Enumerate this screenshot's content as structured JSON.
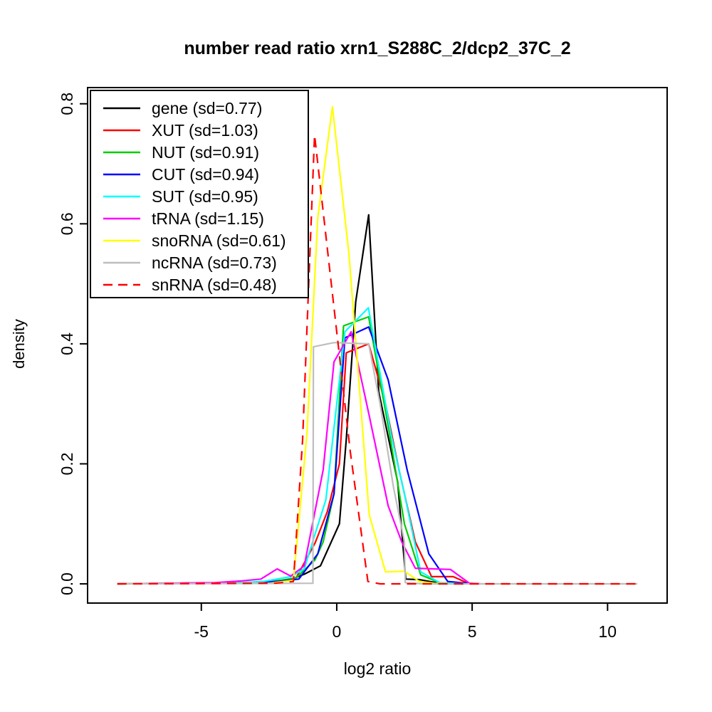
{
  "title": "number read ratio xrn1_S288C_2/dcp2_37C_2",
  "axes": {
    "x": {
      "label": "log2 ratio",
      "range": [
        -9.2,
        12.2
      ],
      "ticks": [
        {
          "v": -5,
          "label": "-5"
        },
        {
          "v": 0,
          "label": "0"
        },
        {
          "v": 5,
          "label": "5"
        },
        {
          "v": 10,
          "label": "10"
        }
      ]
    },
    "y": {
      "label": "density",
      "range": [
        -0.032,
        0.827
      ],
      "ticks": [
        {
          "v": 0.0,
          "label": "0.0"
        },
        {
          "v": 0.2,
          "label": "0.2"
        },
        {
          "v": 0.4,
          "label": "0.4"
        },
        {
          "v": 0.6,
          "label": "0.6"
        },
        {
          "v": 0.8,
          "label": "0.8"
        }
      ]
    }
  },
  "legend": {
    "items": [
      {
        "label": "gene (sd=0.77)",
        "color": "#000000",
        "dashed": false
      },
      {
        "label": "XUT (sd=1.03)",
        "color": "#FF0000",
        "dashed": false
      },
      {
        "label": "NUT (sd=0.91)",
        "color": "#00CD00",
        "dashed": false
      },
      {
        "label": "CUT (sd=0.94)",
        "color": "#0000FF",
        "dashed": false
      },
      {
        "label": "SUT (sd=0.95)",
        "color": "#00FFFF",
        "dashed": false
      },
      {
        "label": "tRNA (sd=1.15)",
        "color": "#FF00FF",
        "dashed": false
      },
      {
        "label": "snoRNA (sd=0.61)",
        "color": "#FFFF00",
        "dashed": false
      },
      {
        "label": "ncRNA (sd=0.73)",
        "color": "#BEBEBE",
        "dashed": false
      },
      {
        "label": "snRNA (sd=0.48)",
        "color": "#FF0000",
        "dashed": true
      }
    ]
  },
  "chart_data": {
    "type": "line",
    "title": "number read ratio xrn1_S288C_2/dcp2_37C_2",
    "xlabel": "log2 ratio",
    "ylabel": "density",
    "xlim": [
      -9.2,
      12.2
    ],
    "ylim": [
      0,
      0.8
    ],
    "grid": false,
    "legend_position": "top-left",
    "series": [
      {
        "name": "gene",
        "sd": 0.77,
        "color": "#000000",
        "linestyle": "solid",
        "points": [
          [
            -8.1,
            0
          ],
          [
            -5,
            0.001
          ],
          [
            -3.5,
            0.002
          ],
          [
            -2.4,
            0.004
          ],
          [
            -1.7,
            0.007
          ],
          [
            -1.2,
            0.016
          ],
          [
            -0.6,
            0.03
          ],
          [
            0.1,
            0.1
          ],
          [
            0.35,
            0.24
          ],
          [
            0.7,
            0.47
          ],
          [
            1.18,
            0.615
          ],
          [
            1.55,
            0.32
          ],
          [
            2.25,
            0.17
          ],
          [
            2.55,
            0.008
          ],
          [
            3.05,
            0.007
          ],
          [
            3.8,
            0.001
          ],
          [
            4.7,
            0
          ]
        ]
      },
      {
        "name": "XUT",
        "sd": 1.03,
        "color": "#FF0000",
        "linestyle": "solid",
        "points": [
          [
            -8.1,
            0
          ],
          [
            -4.5,
            0.001
          ],
          [
            -3,
            0.003
          ],
          [
            -2,
            0.006
          ],
          [
            -1.5,
            0.01
          ],
          [
            -0.8,
            0.068
          ],
          [
            -0.35,
            0.12
          ],
          [
            0.1,
            0.2
          ],
          [
            0.35,
            0.385
          ],
          [
            1.18,
            0.4
          ],
          [
            1.8,
            0.3
          ],
          [
            2.3,
            0.19
          ],
          [
            2.9,
            0.07
          ],
          [
            3.5,
            0.012
          ],
          [
            4.3,
            0.012
          ],
          [
            4.85,
            0.001
          ],
          [
            5.3,
            0
          ]
        ]
      },
      {
        "name": "NUT",
        "sd": 0.91,
        "color": "#00CD00",
        "linestyle": "solid",
        "points": [
          [
            -8.1,
            0
          ],
          [
            -3.5,
            0.002
          ],
          [
            -2.2,
            0.005
          ],
          [
            -1.5,
            0.01
          ],
          [
            -0.8,
            0.04
          ],
          [
            -0.5,
            0.07
          ],
          [
            -0.1,
            0.15
          ],
          [
            0.25,
            0.43
          ],
          [
            1.18,
            0.445
          ],
          [
            1.95,
            0.25
          ],
          [
            2.5,
            0.1
          ],
          [
            3.1,
            0.015
          ],
          [
            3.8,
            0.002
          ],
          [
            4.7,
            0
          ]
        ]
      },
      {
        "name": "CUT",
        "sd": 0.94,
        "color": "#0000FF",
        "linestyle": "solid",
        "points": [
          [
            -8.1,
            0
          ],
          [
            -3.5,
            0.002
          ],
          [
            -2.2,
            0.004
          ],
          [
            -1.4,
            0.008
          ],
          [
            -0.7,
            0.05
          ],
          [
            -0.1,
            0.15
          ],
          [
            0.3,
            0.41
          ],
          [
            1.18,
            0.428
          ],
          [
            1.9,
            0.34
          ],
          [
            2.6,
            0.19
          ],
          [
            3.4,
            0.05
          ],
          [
            4.1,
            0.004
          ],
          [
            5.0,
            0
          ]
        ]
      },
      {
        "name": "SUT",
        "sd": 0.95,
        "color": "#00FFFF",
        "linestyle": "solid",
        "points": [
          [
            -8.1,
            0
          ],
          [
            -4,
            0.001
          ],
          [
            -2.7,
            0.004
          ],
          [
            -1.7,
            0.012
          ],
          [
            -1.2,
            0.025
          ],
          [
            -0.8,
            0.083
          ],
          [
            -0.4,
            0.14
          ],
          [
            0.3,
            0.42
          ],
          [
            1.17,
            0.46
          ],
          [
            2.0,
            0.25
          ],
          [
            2.5,
            0.15
          ],
          [
            3.1,
            0.02
          ],
          [
            3.8,
            0.002
          ],
          [
            4.7,
            0
          ]
        ]
      },
      {
        "name": "tRNA",
        "sd": 1.15,
        "color": "#FF00FF",
        "linestyle": "solid",
        "points": [
          [
            -8.1,
            0
          ],
          [
            -4.5,
            0.002
          ],
          [
            -3.5,
            0.005
          ],
          [
            -2.8,
            0.008
          ],
          [
            -2.2,
            0.025
          ],
          [
            -1.7,
            0.013
          ],
          [
            -1.2,
            0.03
          ],
          [
            -0.5,
            0.19
          ],
          [
            -0.1,
            0.37
          ],
          [
            0.53,
            0.42
          ],
          [
            1.2,
            0.28
          ],
          [
            1.9,
            0.13
          ],
          [
            2.4,
            0.07
          ],
          [
            2.9,
            0.026
          ],
          [
            4.2,
            0.024
          ],
          [
            4.9,
            0.001
          ],
          [
            5.3,
            0
          ]
        ]
      },
      {
        "name": "snoRNA",
        "sd": 0.61,
        "color": "#FFFF00",
        "linestyle": "solid",
        "points": [
          [
            -8.1,
            0
          ],
          [
            -2.5,
            0.001
          ],
          [
            -1.6,
            0.006
          ],
          [
            -1.1,
            0.25
          ],
          [
            -0.7,
            0.61
          ],
          [
            -0.16,
            0.795
          ],
          [
            0.45,
            0.55
          ],
          [
            1.2,
            0.115
          ],
          [
            1.8,
            0.02
          ],
          [
            2.5,
            0.021
          ],
          [
            3.05,
            0.004
          ],
          [
            3.6,
            0.001
          ],
          [
            4.3,
            0
          ]
        ]
      },
      {
        "name": "ncRNA",
        "sd": 0.73,
        "color": "#BEBEBE",
        "linestyle": "solid",
        "points": [
          [
            -8.1,
            0
          ],
          [
            -0.88,
            0.001
          ],
          [
            -0.86,
            0.395
          ],
          [
            -0.1,
            0.402
          ],
          [
            1.18,
            0.4
          ],
          [
            1.6,
            0.3
          ],
          [
            2.1,
            0.16
          ],
          [
            2.5,
            0.07
          ],
          [
            2.53,
            0.002
          ],
          [
            3.2,
            0
          ],
          [
            11.1,
            0
          ]
        ]
      },
      {
        "name": "snRNA",
        "sd": 0.48,
        "color": "#FF0000",
        "linestyle": "dashed",
        "points": [
          [
            -8.1,
            0
          ],
          [
            -2.3,
            0.001
          ],
          [
            -1.6,
            0.004
          ],
          [
            -1.26,
            0.24
          ],
          [
            -0.82,
            0.748
          ],
          [
            -0.2,
            0.5
          ],
          [
            0.5,
            0.22
          ],
          [
            1.15,
            0.004
          ],
          [
            1.6,
            0
          ],
          [
            11.1,
            0
          ]
        ]
      }
    ]
  }
}
